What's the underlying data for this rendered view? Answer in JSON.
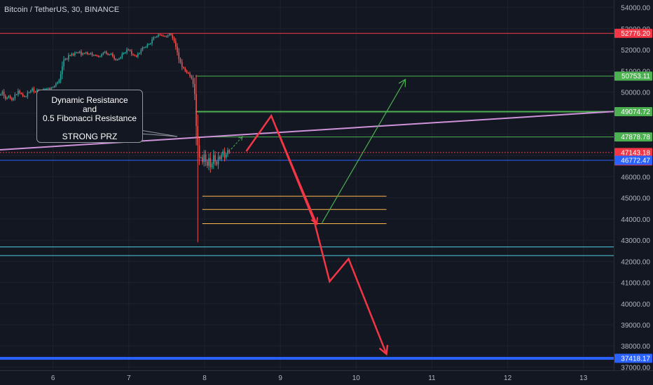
{
  "header": {
    "title": "Bitcoin / TetherUS, 30, BINANCE"
  },
  "annotation": {
    "line1": "Dynamic Resistance",
    "line2": "and",
    "line3": "0.5 Fibonacci Resistance",
    "line4": "STRONG PRZ"
  },
  "colors": {
    "background": "#131722",
    "grid": "#1e222d",
    "axis_text": "#b2b5be",
    "candle_up": "#26a69a",
    "candle_down": "#ef5350",
    "red": "#f23645",
    "green": "#4caf50",
    "blue": "#2962ff",
    "orange": "#ffb74d",
    "teal": "#4dd0e1",
    "purple": "#ce93d8"
  },
  "chart_data": {
    "type": "candlestick",
    "y_axis": {
      "ylim": [
        36850,
        54350
      ],
      "ticks": [
        54000,
        53000,
        52000,
        51000,
        50000,
        49000,
        48000,
        47000,
        46000,
        45000,
        44000,
        43000,
        42000,
        41000,
        40000,
        39000,
        38000,
        37000
      ],
      "tick_labels": [
        "54000.00",
        "53000.00",
        "52000.00",
        "51000.00",
        "50000.00",
        "49000.00",
        "48000.00",
        "47000.00",
        "46000.00",
        "45000.00",
        "44000.00",
        "43000.00",
        "42000.00",
        "41000.00",
        "40000.00",
        "39000.00",
        "38000.00",
        "37000.00"
      ]
    },
    "x_axis": {
      "xlim": [
        5.3,
        13.4
      ],
      "ticks": [
        6,
        7,
        8,
        9,
        10,
        11,
        12,
        13
      ],
      "tick_labels": [
        "6",
        "7",
        "8",
        "9",
        "10",
        "11",
        "12",
        "13"
      ]
    },
    "price_tags": [
      {
        "label": "52776.20",
        "value": 52776.2,
        "color": "#f23645"
      },
      {
        "label": "50753.11",
        "value": 50753.11,
        "color": "#4caf50"
      },
      {
        "label": "49074.72",
        "value": 49074.72,
        "color": "#4caf50"
      },
      {
        "label": "47878.78",
        "value": 47878.78,
        "color": "#4caf50"
      },
      {
        "label": "47143.18",
        "sub": "10:02",
        "value": 47143.18,
        "color": "#f23645"
      },
      {
        "label": "46772.47",
        "value": 46772.47,
        "color": "#2962ff"
      },
      {
        "label": "37418.17",
        "value": 37418.17,
        "color": "#2962ff"
      }
    ],
    "horizontal_lines": [
      {
        "value": 52776.2,
        "x_start": 5.3,
        "x_end": 13.4,
        "color": "#f23645",
        "width": 1
      },
      {
        "value": 50753.11,
        "x_start": 7.88,
        "x_end": 13.4,
        "color": "#4caf50",
        "width": 1
      },
      {
        "value": 49074.72,
        "x_start": 7.88,
        "x_end": 13.4,
        "color": "#4caf50",
        "width": 2
      },
      {
        "value": 47878.78,
        "x_start": 7.88,
        "x_end": 13.4,
        "color": "#4caf50",
        "width": 1
      },
      {
        "value": 47143.18,
        "x_start": 5.3,
        "x_end": 13.4,
        "color": "#f23645",
        "width": 1,
        "dashed": true
      },
      {
        "value": 46772.47,
        "x_start": 5.3,
        "x_end": 13.4,
        "color": "#2962ff",
        "width": 1
      },
      {
        "value": 45080,
        "x_start": 7.97,
        "x_end": 10.4,
        "color": "#ffb74d",
        "width": 1
      },
      {
        "value": 44450,
        "x_start": 7.97,
        "x_end": 10.4,
        "color": "#ffb74d",
        "width": 1
      },
      {
        "value": 43780,
        "x_start": 7.97,
        "x_end": 10.4,
        "color": "#ffb74d",
        "width": 1
      },
      {
        "value": 42680,
        "x_start": 5.3,
        "x_end": 13.4,
        "color": "#4dd0e1",
        "width": 1
      },
      {
        "value": 42270,
        "x_start": 5.3,
        "x_end": 13.4,
        "color": "#4dd0e1",
        "width": 1
      },
      {
        "value": 37418.17,
        "x_start": 5.3,
        "x_end": 13.4,
        "color": "#2962ff",
        "width": 4
      }
    ],
    "trendline": {
      "points": [
        [
          5.3,
          47270
        ],
        [
          13.4,
          49080
        ]
      ],
      "color": "#ce93d8"
    },
    "pointer_lines": [
      {
        "points": [
          [
            6.17,
            48800
          ],
          [
            7.64,
            47900
          ]
        ],
        "color": "#9598a1"
      },
      {
        "points": [
          [
            6.17,
            48300
          ],
          [
            7.64,
            47900
          ]
        ],
        "color": "#9598a1"
      }
    ],
    "projection_red_zigzag": [
      [
        8.55,
        47200
      ],
      [
        8.88,
        48880
      ],
      [
        9.45,
        43850
      ],
      [
        9.65,
        41050
      ],
      [
        9.9,
        42120
      ],
      [
        10.4,
        37620
      ]
    ],
    "projection_red_branch": [
      [
        8.95,
        48300
      ],
      [
        9.48,
        43760
      ]
    ],
    "projection_green_up": [
      [
        9.55,
        43820
      ],
      [
        10.65,
        50600
      ]
    ],
    "projection_green_small": [
      [
        8.35,
        47300
      ],
      [
        8.5,
        47900
      ]
    ],
    "candles": {
      "x_start": 5.3,
      "x_step": 0.0208,
      "close": [
        49898,
        50023,
        49815,
        49679,
        49742,
        49816,
        49715,
        49622,
        49704,
        49882,
        49884,
        50058,
        49951,
        49916,
        49815,
        49786,
        49789,
        49971,
        49986,
        50067,
        50172,
        50021,
        50001,
        50109,
        50090,
        50047,
        50033,
        50131,
        50150,
        50155,
        50184,
        50140,
        50210,
        50227,
        50287,
        50399,
        50465,
        50570,
        50835,
        51216,
        51520,
        51579,
        51549,
        51736,
        51728,
        51812,
        51741,
        51856,
        51872,
        51854,
        51917,
        51760,
        51829,
        51824,
        51874,
        51796,
        51792,
        51842,
        51734,
        51744,
        51736,
        51706,
        51668,
        51688,
        51779,
        51855,
        51909,
        51817,
        51763,
        51774,
        51814,
        51694,
        51570,
        51512,
        51539,
        51586,
        51646,
        51803,
        51843,
        51868,
        52020,
        51985,
        51943,
        51790,
        51751,
        51719,
        51673,
        51806,
        51839,
        51989,
        52097,
        52110,
        52136,
        52248,
        52266,
        52296,
        52490,
        52585,
        52592,
        52633,
        52721,
        52697,
        52682,
        52644,
        52642,
        52607,
        52680,
        52751,
        52694,
        52543,
        52397,
        52148,
        51882,
        51554,
        51414,
        51179,
        51122,
        51007,
        50920,
        50885,
        50754,
        50650,
        50384,
        49906,
        48390,
        47480,
        46900,
        46910,
        46690,
        47050,
        46710,
        46520,
        46880,
        46450,
        46610,
        47020,
        46710,
        46580,
        46950,
        46840,
        47030,
        47200,
        46900,
        47050,
        47250,
        47143
      ],
      "open_first": 49853
    }
  }
}
